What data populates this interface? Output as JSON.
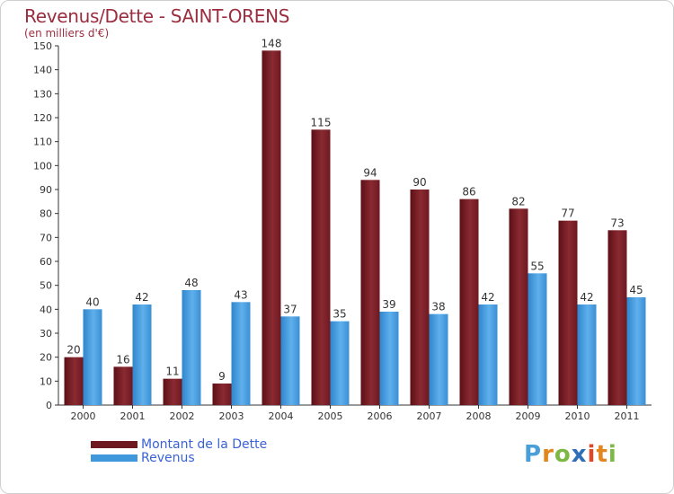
{
  "chart_data": {
    "type": "bar",
    "title": "Revenus/Dette - SAINT-ORENS",
    "subtitle": "(en milliers d'€)",
    "categories": [
      "2000",
      "2001",
      "2002",
      "2003",
      "2004",
      "2005",
      "2006",
      "2007",
      "2008",
      "2009",
      "2010",
      "2011"
    ],
    "series": [
      {
        "name": "Montant de la Dette",
        "color": "#7a1a22",
        "values": [
          20,
          16,
          11,
          9,
          148,
          115,
          94,
          90,
          86,
          82,
          77,
          73
        ]
      },
      {
        "name": "Revenus",
        "color": "#3f97dc",
        "values": [
          40,
          42,
          48,
          43,
          37,
          35,
          39,
          38,
          42,
          55,
          42,
          45
        ]
      }
    ],
    "ylim": [
      0,
      150
    ],
    "yticks": [
      0,
      10,
      20,
      30,
      40,
      50,
      60,
      70,
      80,
      90,
      100,
      110,
      120,
      130,
      140,
      150
    ],
    "grid": false,
    "legend_position": "bottom-left",
    "xlabel": "",
    "ylabel": ""
  },
  "logo": {
    "letters": [
      "P",
      "r",
      "o",
      "x",
      "i",
      "t",
      "i"
    ],
    "colors": [
      "#4a9fd8",
      "#e2861d",
      "#7cb843",
      "#2e6fb8",
      "#d84a2a",
      "#e2861d",
      "#7cb843"
    ]
  }
}
